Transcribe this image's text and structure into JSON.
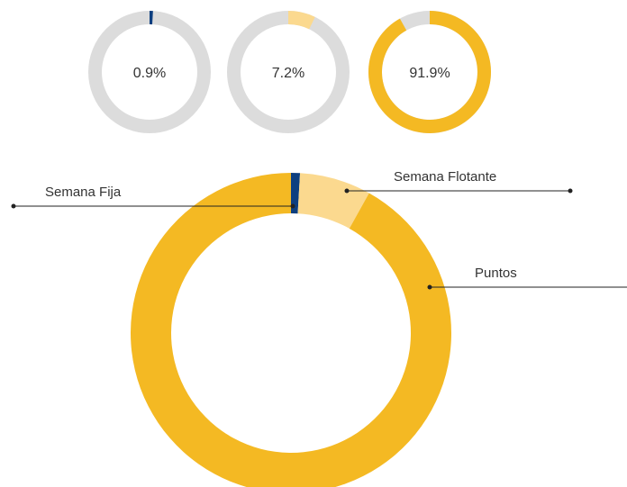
{
  "chart_data": {
    "type": "donut",
    "categories": [
      "Semana Fija",
      "Semana Flotante",
      "Puntos"
    ],
    "values": [
      0.9,
      7.2,
      91.9
    ],
    "value_labels": [
      "0.9%",
      "7.2%",
      "91.9%"
    ],
    "colors": [
      "#0d3f80",
      "#fbd98f",
      "#f4b923"
    ]
  }
}
